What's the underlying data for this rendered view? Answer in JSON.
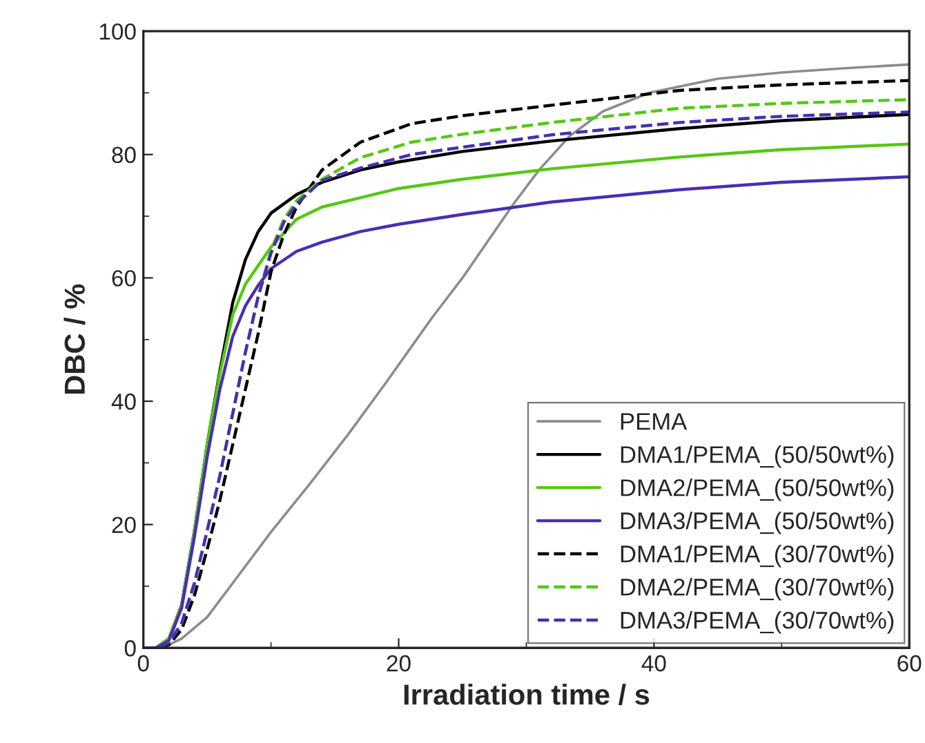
{
  "chart_data": {
    "type": "line",
    "xlabel": "Irradiation time / s",
    "ylabel": "DBC / %",
    "xlim": [
      0,
      60
    ],
    "ylim": [
      0,
      100
    ],
    "xticks": [
      0,
      20,
      40,
      60
    ],
    "yticks": [
      0,
      20,
      40,
      60,
      80,
      100
    ],
    "grid": false,
    "legend": "bottom right",
    "marker": "none",
    "series": [
      {
        "name": "PEMA",
        "color": "#8c8c8c",
        "line_style": "solid",
        "x": [
          0,
          1,
          2,
          3,
          5,
          7,
          10,
          13,
          16,
          19,
          22.6,
          25,
          27,
          29,
          31,
          33.4,
          36,
          39.6,
          45,
          50,
          55,
          60
        ],
        "values": [
          0,
          0,
          0.5,
          1.5,
          5,
          10.5,
          18.8,
          26.5,
          34.5,
          43,
          53.5,
          60,
          66,
          72,
          77.5,
          83,
          87,
          90,
          92.3,
          93.3,
          94,
          94.6
        ]
      },
      {
        "name": "DMA1/PEMA_(50/50wt%)",
        "color": "#000000",
        "line_style": "solid",
        "x": [
          0,
          1,
          2,
          3,
          4,
          5,
          6,
          7,
          8,
          9,
          10,
          12,
          14,
          17,
          20,
          25,
          32,
          42,
          50,
          60
        ],
        "values": [
          0,
          0,
          1.5,
          7,
          19,
          33,
          45,
          56,
          63,
          67.5,
          70.5,
          73.5,
          75.5,
          77.5,
          78.8,
          80.5,
          82.2,
          84.2,
          85.5,
          86.5
        ]
      },
      {
        "name": "DMA2/PEMA_(50/50wt%)",
        "color": "#55c814",
        "line_style": "solid",
        "x": [
          0,
          1,
          2,
          3,
          4,
          5,
          6,
          7,
          8,
          9,
          10,
          12,
          14,
          17,
          20,
          25,
          32,
          42,
          50,
          60
        ],
        "values": [
          0,
          0,
          1.5,
          7,
          19,
          33,
          44.5,
          54,
          59,
          62,
          65,
          69.5,
          71.5,
          73,
          74.5,
          76,
          77.7,
          79.6,
          80.8,
          81.7
        ]
      },
      {
        "name": "DMA3/PEMA_(50/50wt%)",
        "color": "#4a2db4",
        "line_style": "solid",
        "x": [
          0,
          1,
          2,
          3,
          4,
          5,
          6,
          7,
          8,
          9,
          10,
          12,
          14,
          17,
          20,
          25,
          32,
          42,
          50,
          60
        ],
        "values": [
          0,
          0,
          1.2,
          6.5,
          18,
          31,
          42,
          50.5,
          55.5,
          58.8,
          61.5,
          64.3,
          65.8,
          67.5,
          68.7,
          70.3,
          72.3,
          74.3,
          75.5,
          76.4
        ]
      },
      {
        "name": "DMA1/PEMA_(30/70wt%)",
        "color": "#000000",
        "line_style": "dashed",
        "x": [
          0,
          1,
          2,
          3,
          4,
          5,
          6,
          7,
          8,
          9,
          10,
          11,
          12,
          14,
          17,
          21,
          25,
          32,
          42,
          50,
          60
        ],
        "values": [
          0,
          0,
          0.5,
          3,
          8.5,
          16,
          24,
          33,
          42,
          51,
          61,
          67,
          71.5,
          77.5,
          82,
          85,
          86.3,
          88,
          90.4,
          91.3,
          92
        ]
      },
      {
        "name": "DMA2/PEMA_(30/70wt%)",
        "color": "#55c814",
        "line_style": "dashed",
        "x": [
          0,
          1,
          2,
          3,
          4,
          5,
          6,
          7,
          8,
          9,
          10,
          11,
          12,
          14,
          17,
          21,
          25,
          32,
          42,
          50,
          60
        ],
        "values": [
          0,
          0,
          0.8,
          4,
          10.5,
          19,
          28,
          38,
          48,
          57,
          64.5,
          69.5,
          72.5,
          76,
          79.5,
          82,
          83.3,
          85.2,
          87.5,
          88.3,
          88.9
        ]
      },
      {
        "name": "DMA3/PEMA_(30/70wt%)",
        "color": "#4a2db4",
        "line_style": "dashed",
        "x": [
          0,
          1,
          2,
          3,
          4,
          5,
          6,
          7,
          8,
          9,
          10,
          11,
          12,
          14,
          17,
          21,
          25,
          32,
          42,
          50,
          60
        ],
        "values": [
          0,
          0,
          0.8,
          4,
          10.5,
          19,
          28,
          38,
          48,
          57,
          64,
          69,
          72,
          75.8,
          77.8,
          80,
          81.2,
          83.2,
          85.2,
          86.2,
          86.9
        ]
      }
    ]
  }
}
